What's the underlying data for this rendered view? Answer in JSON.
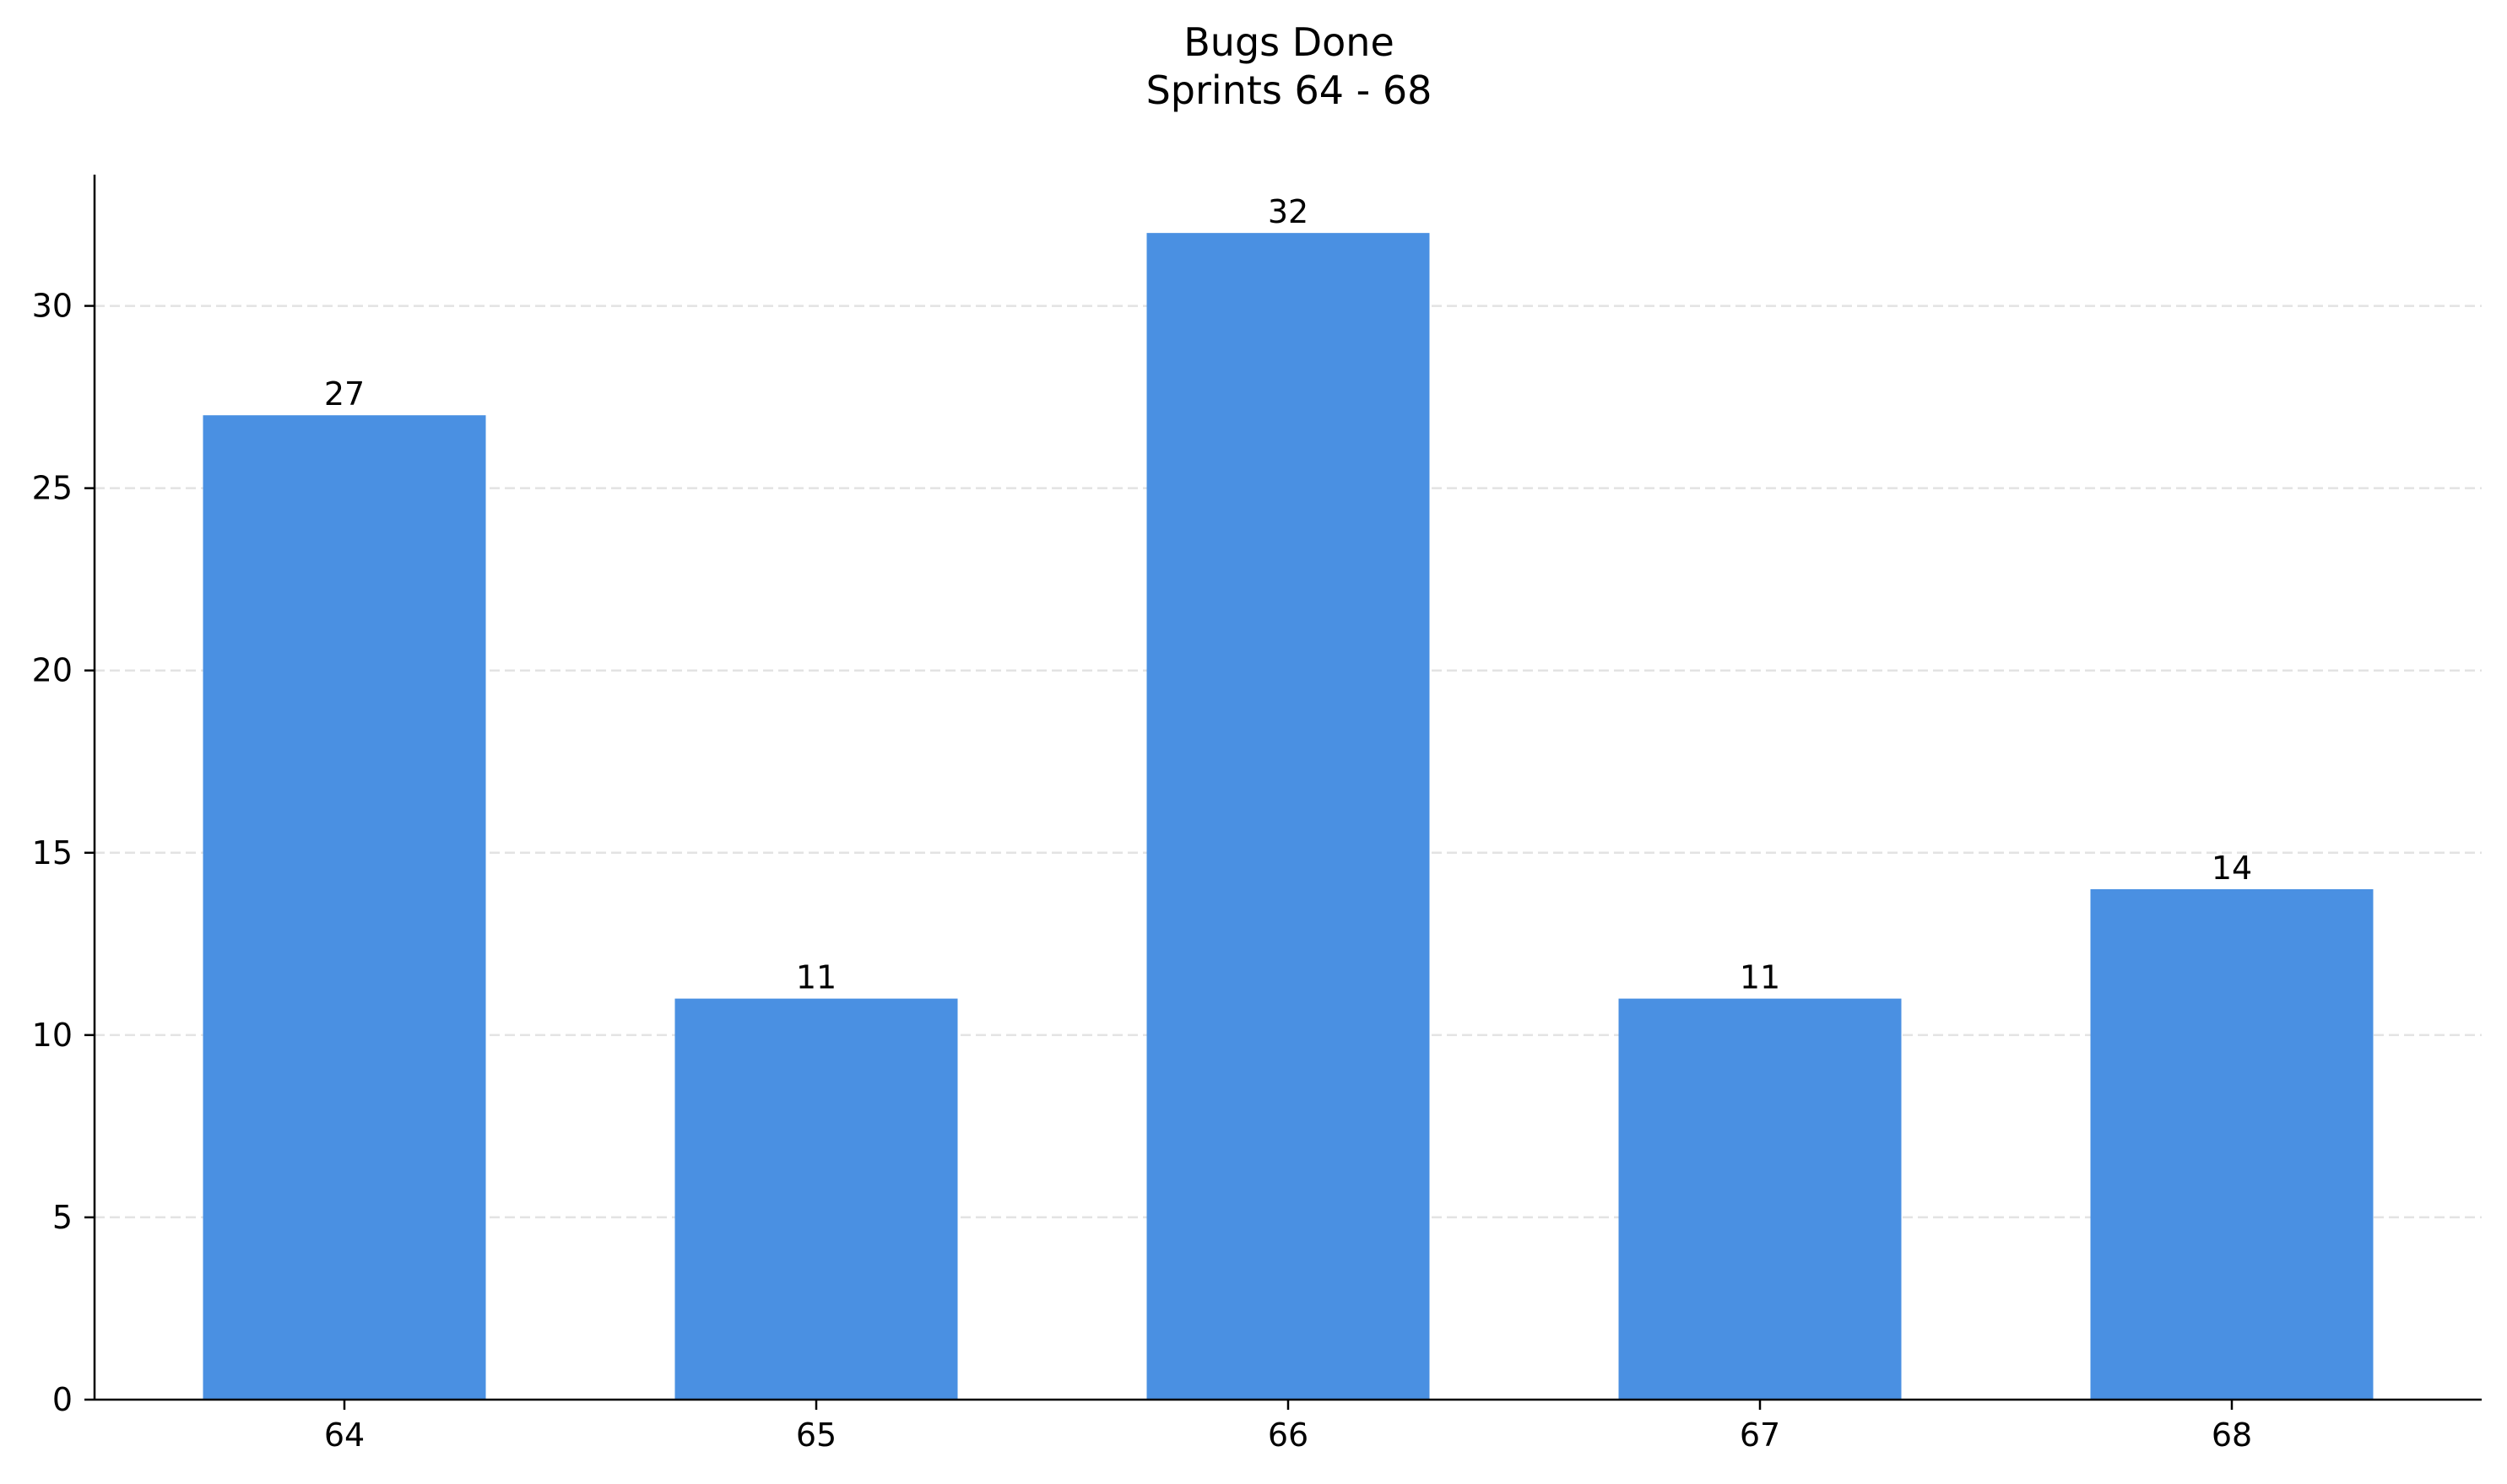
{
  "chart_data": {
    "type": "bar",
    "title": "Bugs Done",
    "subtitle": "Sprints 64 - 68",
    "xlabel": "",
    "ylabel": "",
    "categories": [
      "64",
      "65",
      "66",
      "67",
      "68"
    ],
    "values": [
      27,
      11,
      32,
      11,
      14
    ],
    "ylim": [
      0,
      33.6
    ],
    "yticks": [
      0,
      5,
      10,
      15,
      20,
      25,
      30
    ],
    "grid": "horizontal dashed",
    "legend": "none",
    "bar_color": "#4A90E2",
    "grid_color": "#E3E3E3",
    "axis_color": "#000000",
    "show_data_labels": true
  }
}
